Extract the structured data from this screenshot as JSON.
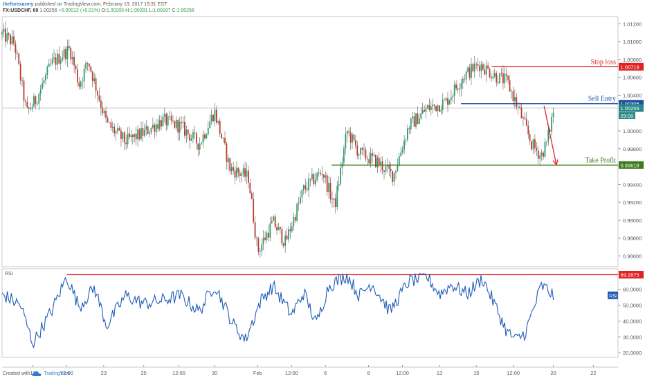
{
  "header": {
    "author": "theforexarmy",
    "published": "published on TradingView.com, February 19, 2017 19:31 EST",
    "symbol": "FX:USDCHF, 60",
    "last": "1.00256",
    "change": "+0.00012 (+0.01%)",
    "o_label": "O:",
    "o_value": "1.00205",
    "h_label": "H:",
    "h_value": "1.00281",
    "l_label": "L:",
    "l_value": "1.00187",
    "c_label": "C:",
    "c_value": "1.00256"
  },
  "footer": {
    "created_with": "Created with",
    "brand": "TradingView"
  },
  "colors": {
    "up": "#2a9d6b",
    "down": "#c0392b",
    "wick": "#555555",
    "stop": "#e02424",
    "entry": "#1f4fa3",
    "profit": "#3d7a1f",
    "rsi": "#1f5bb8",
    "rsi_level": "#e02424"
  },
  "chart_data": [
    {
      "type": "candlestick",
      "ylim": [
        0.9848,
        1.0128
      ],
      "yticks": [
        1.012,
        1.01,
        1.008,
        1.006,
        1.004,
        1.0,
        0.998,
        0.996,
        0.994,
        0.992,
        0.99,
        0.988,
        0.986
      ],
      "ytick_labels": [
        "1.01200",
        "1.01000",
        "1.00800",
        "1.00600",
        "1.00400",
        "1.00000",
        "0.99800",
        "0.99600",
        "0.99400",
        "0.99200",
        "0.99000",
        "0.98800",
        "0.98600"
      ],
      "x_labels": [
        "18",
        "12:00",
        "23",
        "25",
        "12:00",
        "30",
        "Feb",
        "12:00",
        "6",
        "8",
        "12:00",
        "13",
        "15",
        "12:00",
        "20",
        "22"
      ],
      "x_label_pos": [
        0.05,
        0.105,
        0.165,
        0.23,
        0.287,
        0.345,
        0.415,
        0.47,
        0.525,
        0.595,
        0.65,
        0.71,
        0.77,
        0.83,
        0.895,
        0.96
      ],
      "anchors_t": [
        0.0,
        0.02,
        0.04,
        0.055,
        0.08,
        0.11,
        0.125,
        0.14,
        0.17,
        0.2,
        0.23,
        0.26,
        0.29,
        0.32,
        0.345,
        0.37,
        0.4,
        0.415,
        0.44,
        0.46,
        0.49,
        0.52,
        0.54,
        0.56,
        0.58,
        0.61,
        0.635,
        0.66,
        0.69,
        0.72,
        0.75,
        0.775,
        0.8,
        0.82,
        0.84,
        0.86,
        0.875,
        0.885,
        0.895
      ],
      "anchors_p": [
        1.0108,
        1.0098,
        1.002,
        1.0035,
        1.0075,
        1.0092,
        1.0052,
        1.0078,
        1.0008,
        0.9988,
        0.9998,
        1.0012,
        1.0005,
        0.9985,
        1.0022,
        0.9958,
        0.9948,
        0.9865,
        0.9898,
        0.9875,
        0.9935,
        0.9955,
        0.9915,
        1.0,
        0.9975,
        0.9965,
        0.995,
        1.0005,
        1.0025,
        1.0032,
        1.0062,
        1.0075,
        1.0062,
        1.0055,
        1.0022,
        0.9985,
        0.9972,
        0.9988,
        1.0022
      ],
      "levels": [
        {
          "name": "Stop loss",
          "value": 1.00719,
          "label": "1.00719",
          "start_t": 0.795
        },
        {
          "name": "Sell Entry",
          "value": 1.00305,
          "label": "1.00305",
          "start_t": 0.745
        },
        {
          "name": "Take Profit",
          "value": 0.99618,
          "label": "0.99618",
          "start_t": 0.535
        }
      ],
      "current_price": {
        "value": 1.00256,
        "label": "1.00256",
        "countdown": "29:00"
      },
      "arrow": {
        "from_t": 0.88,
        "from_p": 1.0028,
        "to_t": 0.9,
        "to_p": 0.9962
      }
    },
    {
      "type": "line",
      "title": "RSI",
      "series_name": "RSI",
      "ylim": [
        17,
        73
      ],
      "yticks": [
        60,
        50,
        40,
        30,
        20
      ],
      "ytick_labels": [
        "60.0000",
        "50.0000",
        "40.0000",
        "30.0000",
        "20.0000"
      ],
      "level": {
        "value": 69.2875,
        "label": "69.2875"
      },
      "anchors_t": [
        0.0,
        0.03,
        0.05,
        0.08,
        0.105,
        0.125,
        0.15,
        0.17,
        0.2,
        0.23,
        0.26,
        0.29,
        0.32,
        0.345,
        0.375,
        0.395,
        0.42,
        0.44,
        0.47,
        0.49,
        0.51,
        0.53,
        0.56,
        0.58,
        0.6,
        0.63,
        0.66,
        0.69,
        0.71,
        0.73,
        0.755,
        0.78,
        0.805,
        0.82,
        0.835,
        0.85,
        0.865,
        0.875,
        0.885,
        0.895
      ],
      "anchors_v": [
        57,
        50,
        26,
        46,
        68,
        49,
        61,
        37,
        56,
        51,
        53,
        56,
        46,
        63,
        38,
        28,
        53,
        62,
        44,
        58,
        38,
        62,
        69,
        56,
        64,
        46,
        65,
        68,
        57,
        63,
        57,
        67,
        46,
        33,
        28,
        33,
        50,
        62,
        60,
        56
      ]
    }
  ]
}
